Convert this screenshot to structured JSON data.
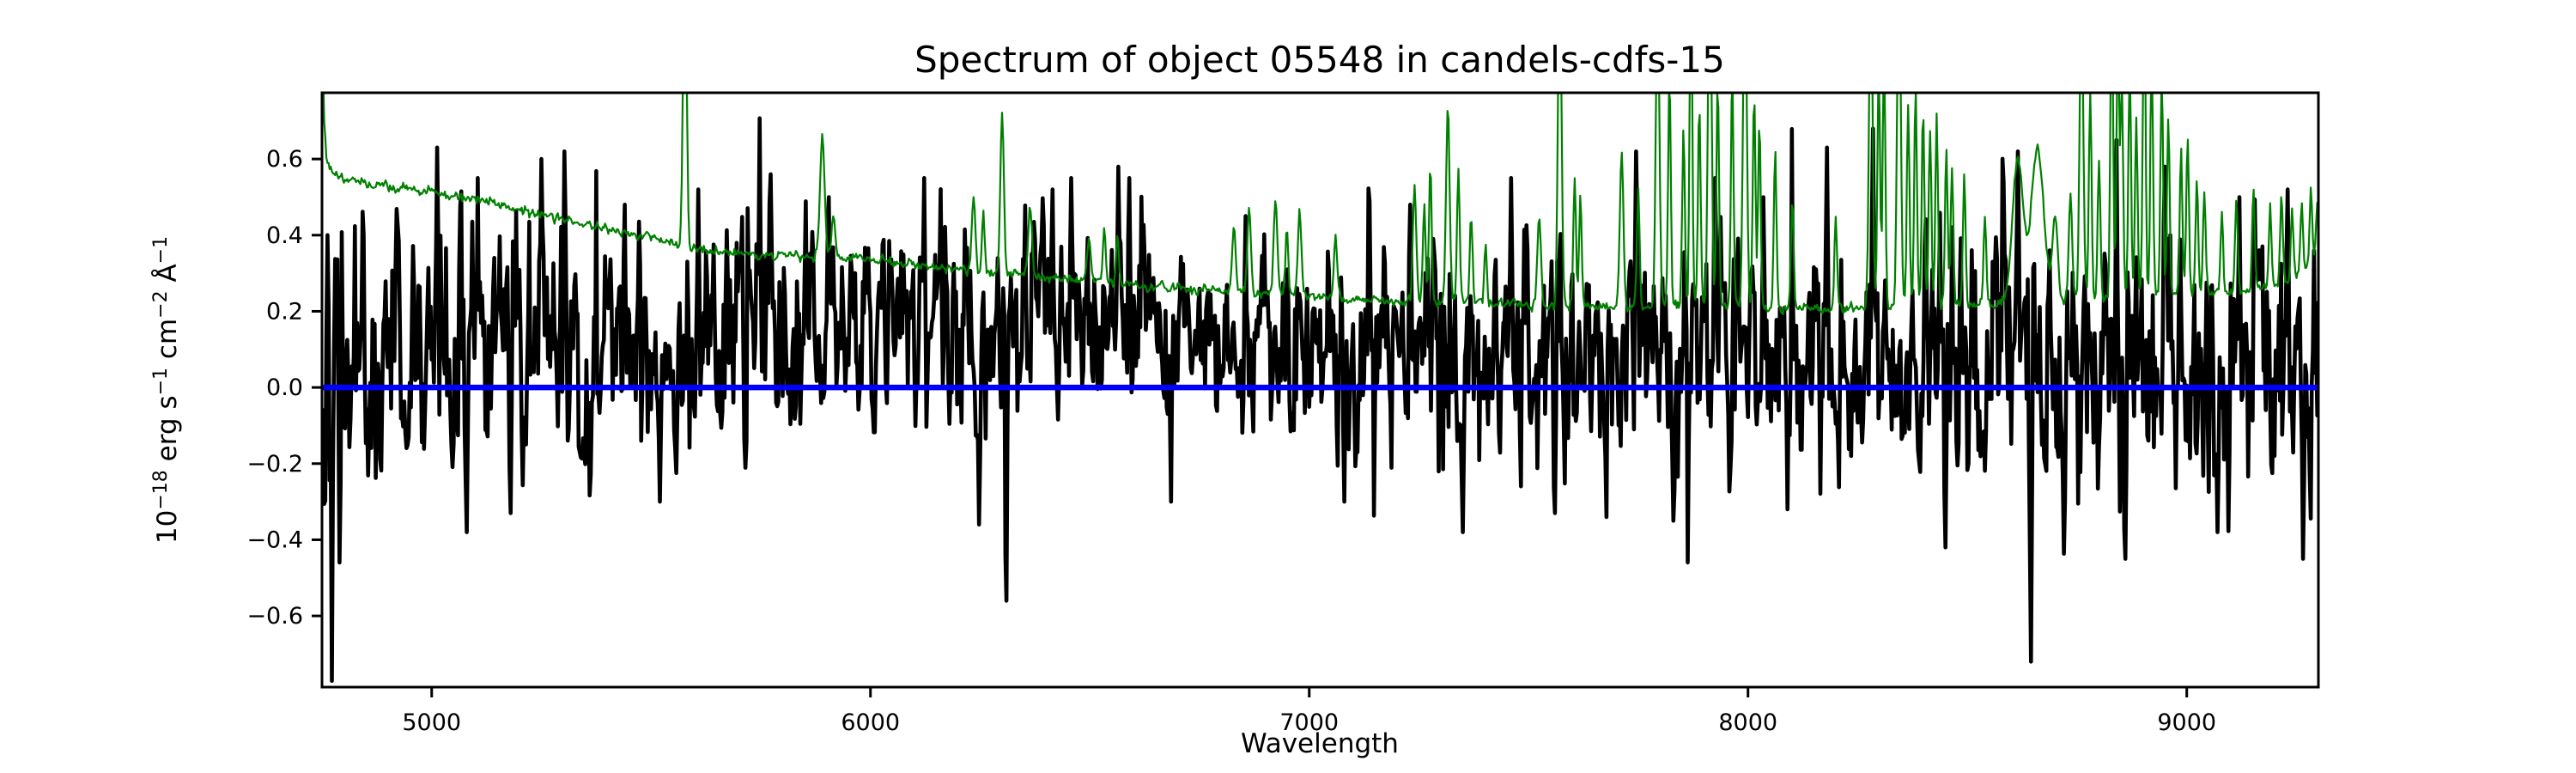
{
  "chart_data": {
    "type": "line",
    "title": "Spectrum of object 05548 in candels-cdfs-15",
    "xlabel": "Wavelength",
    "ylabel": "10−18 erg s−1 cm−2 Å−1",
    "ylabel_parts": [
      {
        "t": "10"
      },
      {
        "t": "−18",
        "sup": true
      },
      {
        "t": " erg s"
      },
      {
        "t": "−1",
        "sup": true
      },
      {
        "t": " cm"
      },
      {
        "t": "−2",
        "sup": true
      },
      {
        "t": " Å"
      },
      {
        "t": "−1",
        "sup": true
      }
    ],
    "xlim": [
      4750,
      9300
    ],
    "ylim": [
      -0.787,
      0.774
    ],
    "xticks": [
      {
        "v": 5000,
        "label": "5000"
      },
      {
        "v": 6000,
        "label": "6000"
      },
      {
        "v": 7000,
        "label": "7000"
      },
      {
        "v": 8000,
        "label": "8000"
      },
      {
        "v": 9000,
        "label": "9000"
      }
    ],
    "yticks": [
      {
        "v": 0.6,
        "label": "0.6"
      },
      {
        "v": 0.4,
        "label": "0.4"
      },
      {
        "v": 0.2,
        "label": "0.2"
      },
      {
        "v": 0.0,
        "label": "0.0"
      },
      {
        "v": -0.2,
        "label": "−0.2"
      },
      {
        "v": -0.4,
        "label": "−0.4"
      },
      {
        "v": -0.6,
        "label": "−0.6"
      }
    ],
    "grid": false,
    "legend": false,
    "sample_step_angstrom": 2.5,
    "noise_seed": 42,
    "series": [
      {
        "name": "object-flux",
        "color": "#000000",
        "linewidth": 4.6,
        "ar_coeff": 0.45,
        "mean_anchors": [
          [
            4750,
            0.06
          ],
          [
            4900,
            0.08
          ],
          [
            5100,
            0.09
          ],
          [
            5300,
            0.1
          ],
          [
            5500,
            0.12
          ],
          [
            5700,
            0.14
          ],
          [
            5900,
            0.15
          ],
          [
            6100,
            0.16
          ],
          [
            6300,
            0.15
          ],
          [
            6500,
            0.14
          ],
          [
            6700,
            0.12
          ],
          [
            6900,
            0.11
          ],
          [
            7100,
            0.09
          ],
          [
            7300,
            0.08
          ],
          [
            7500,
            0.08
          ],
          [
            7700,
            0.09
          ],
          [
            7900,
            0.08
          ],
          [
            8100,
            0.07
          ],
          [
            8300,
            0.07
          ],
          [
            8500,
            0.06
          ],
          [
            8700,
            0.06
          ],
          [
            8900,
            0.07
          ],
          [
            9100,
            0.06
          ],
          [
            9300,
            0.05
          ]
        ],
        "sigma_anchors": [
          [
            4750,
            0.17
          ],
          [
            5000,
            0.16
          ],
          [
            5200,
            0.155
          ],
          [
            5400,
            0.14
          ],
          [
            5600,
            0.13
          ],
          [
            5900,
            0.12
          ],
          [
            6200,
            0.13
          ],
          [
            6500,
            0.11
          ],
          [
            6800,
            0.09
          ],
          [
            7000,
            0.11
          ],
          [
            7200,
            0.13
          ],
          [
            7500,
            0.14
          ],
          [
            7800,
            0.14
          ],
          [
            8100,
            0.14
          ],
          [
            8400,
            0.15
          ],
          [
            8700,
            0.155
          ],
          [
            9000,
            0.15
          ],
          [
            9300,
            0.16
          ]
        ],
        "spikes": [
          [
            4763,
            0.4
          ],
          [
            4790,
            -0.46
          ],
          [
            5013,
            0.63
          ],
          [
            5080,
            -0.38
          ],
          [
            5105,
            0.55
          ],
          [
            5180,
            -0.33
          ],
          [
            5250,
            0.6
          ],
          [
            5303,
            0.62
          ],
          [
            5440,
            0.48
          ],
          [
            5520,
            -0.3
          ],
          [
            5608,
            0.52
          ],
          [
            5773,
            0.56
          ],
          [
            5905,
            0.5
          ],
          [
            6123,
            0.55
          ],
          [
            6248,
            -0.36
          ],
          [
            6310,
            -0.56
          ],
          [
            6415,
            0.52
          ],
          [
            6457,
            0.55
          ],
          [
            6565,
            0.58
          ],
          [
            6590,
            0.55
          ],
          [
            6685,
            -0.3
          ],
          [
            6855,
            0.45
          ],
          [
            7080,
            -0.3
          ],
          [
            7230,
            0.48
          ],
          [
            7350,
            -0.38
          ],
          [
            7460,
            0.55
          ],
          [
            7560,
            -0.33
          ],
          [
            7745,
            0.62
          ],
          [
            7830,
            -0.35
          ],
          [
            7925,
            0.55
          ],
          [
            8035,
            0.5
          ],
          [
            8090,
            -0.32
          ],
          [
            8180,
            0.63
          ],
          [
            8285,
            0.68
          ],
          [
            8450,
            -0.42
          ],
          [
            8615,
            0.62
          ],
          [
            8645,
            -0.72
          ],
          [
            8840,
            0.65
          ],
          [
            8860,
            -0.45
          ],
          [
            8950,
            0.58
          ],
          [
            9070,
            -0.38
          ],
          [
            9120,
            0.5
          ],
          [
            9230,
            0.52
          ],
          [
            9265,
            -0.45
          ]
        ]
      },
      {
        "name": "noise-spectrum",
        "color": "#008000",
        "linewidth": 2.2,
        "jitter_sigma": 0.006,
        "jitter_ar": 0.3,
        "base_anchors": [
          [
            4750,
            1.0
          ],
          [
            4754,
            0.72
          ],
          [
            4760,
            0.6
          ],
          [
            4772,
            0.565
          ],
          [
            4800,
            0.55
          ],
          [
            4860,
            0.535
          ],
          [
            4920,
            0.525
          ],
          [
            4975,
            0.52
          ],
          [
            5000,
            0.515
          ],
          [
            5060,
            0.5
          ],
          [
            5120,
            0.49
          ],
          [
            5180,
            0.47
          ],
          [
            5240,
            0.46
          ],
          [
            5300,
            0.44
          ],
          [
            5360,
            0.425
          ],
          [
            5420,
            0.41
          ],
          [
            5480,
            0.4
          ],
          [
            5540,
            0.385
          ],
          [
            5580,
            0.365
          ],
          [
            5640,
            0.355
          ],
          [
            5720,
            0.35
          ],
          [
            5800,
            0.345
          ],
          [
            5880,
            0.345
          ],
          [
            5960,
            0.34
          ],
          [
            6040,
            0.33
          ],
          [
            6120,
            0.32
          ],
          [
            6200,
            0.31
          ],
          [
            6300,
            0.3
          ],
          [
            6400,
            0.29
          ],
          [
            6500,
            0.28
          ],
          [
            6600,
            0.27
          ],
          [
            6700,
            0.262
          ],
          [
            6800,
            0.255
          ],
          [
            6900,
            0.248
          ],
          [
            7000,
            0.24
          ],
          [
            7100,
            0.23
          ],
          [
            7200,
            0.224
          ],
          [
            7320,
            0.228
          ],
          [
            7450,
            0.22
          ],
          [
            7600,
            0.215
          ],
          [
            7750,
            0.21
          ],
          [
            7900,
            0.215
          ],
          [
            8050,
            0.21
          ],
          [
            8200,
            0.205
          ],
          [
            8330,
            0.212
          ],
          [
            8450,
            0.215
          ],
          [
            8560,
            0.22
          ],
          [
            8640,
            0.235
          ],
          [
            8750,
            0.232
          ],
          [
            8900,
            0.238
          ],
          [
            9000,
            0.245
          ],
          [
            9100,
            0.252
          ],
          [
            9180,
            0.262
          ],
          [
            9240,
            0.285
          ],
          [
            9285,
            0.32
          ],
          [
            9300,
            0.36
          ]
        ],
        "sky_lines": [
          [
            5199,
            0.47,
            3
          ],
          [
            5577,
            1.2,
            4
          ],
          [
            5890,
            0.66,
            5
          ],
          [
            5915,
            0.45,
            4
          ],
          [
            6235,
            0.5,
            4
          ],
          [
            6257,
            0.45,
            3
          ],
          [
            6300,
            0.72,
            4
          ],
          [
            6364,
            0.48,
            4
          ],
          [
            6498,
            0.4,
            4
          ],
          [
            6533,
            0.42,
            3
          ],
          [
            6563,
            0.4,
            3
          ],
          [
            6828,
            0.42,
            4
          ],
          [
            6863,
            0.48,
            4
          ],
          [
            6923,
            0.5,
            4
          ],
          [
            6949,
            0.42,
            3
          ],
          [
            6978,
            0.46,
            4
          ],
          [
            7060,
            0.4,
            4
          ],
          [
            7240,
            0.52,
            4
          ],
          [
            7262,
            0.48,
            3
          ],
          [
            7276,
            0.58,
            3
          ],
          [
            7316,
            0.74,
            4
          ],
          [
            7340,
            0.57,
            3
          ],
          [
            7369,
            0.46,
            3
          ],
          [
            7402,
            0.38,
            3
          ],
          [
            7524,
            0.45,
            4
          ],
          [
            7571,
            1.1,
            4
          ],
          [
            7605,
            0.55,
            3
          ],
          [
            7618,
            0.5,
            3
          ],
          [
            7712,
            0.62,
            4
          ],
          [
            7750,
            0.52,
            3
          ],
          [
            7794,
            1.05,
            4
          ],
          [
            7821,
            0.82,
            3
          ],
          [
            7853,
            0.68,
            3
          ],
          [
            7870,
            1.1,
            3
          ],
          [
            7889,
            0.75,
            3
          ],
          [
            7913,
            1.15,
            4
          ],
          [
            7931,
            0.8,
            3
          ],
          [
            7964,
            0.82,
            3
          ],
          [
            7993,
            1.15,
            4
          ],
          [
            8014,
            0.78,
            3
          ],
          [
            8026,
            0.7,
            3
          ],
          [
            8062,
            0.62,
            3
          ],
          [
            8101,
            0.5,
            3
          ],
          [
            8200,
            0.45,
            3
          ],
          [
            8280,
            1.1,
            4
          ],
          [
            8298,
            0.85,
            3
          ],
          [
            8310,
            0.88,
            3
          ],
          [
            8344,
            1.15,
            4
          ],
          [
            8365,
            0.75,
            3
          ],
          [
            8382,
            0.8,
            3
          ],
          [
            8399,
            0.72,
            3
          ],
          [
            8415,
            0.68,
            3
          ],
          [
            8430,
            0.72,
            3
          ],
          [
            8452,
            0.62,
            3
          ],
          [
            8465,
            0.58,
            3
          ],
          [
            8493,
            0.55,
            3
          ],
          [
            8540,
            0.45,
            3
          ],
          [
            8615,
            0.6,
            12
          ],
          [
            8660,
            0.63,
            14
          ],
          [
            8700,
            0.45,
            6
          ],
          [
            8735,
            0.5,
            4
          ],
          [
            8760,
            1.05,
            4
          ],
          [
            8780,
            0.78,
            3
          ],
          [
            8800,
            0.6,
            3
          ],
          [
            8829,
            1.1,
            3
          ],
          [
            8843,
            0.95,
            3
          ],
          [
            8852,
            0.8,
            3
          ],
          [
            8870,
            0.85,
            3
          ],
          [
            8885,
            0.72,
            3
          ],
          [
            8903,
            1.1,
            3
          ],
          [
            8920,
            0.88,
            3
          ],
          [
            8943,
            0.82,
            3
          ],
          [
            8958,
            0.72,
            3
          ],
          [
            8987,
            0.62,
            3
          ],
          [
            9002,
            0.66,
            3
          ],
          [
            9023,
            0.55,
            3
          ],
          [
            9040,
            0.52,
            3
          ],
          [
            9080,
            0.45,
            3
          ],
          [
            9113,
            0.5,
            3
          ],
          [
            9152,
            0.52,
            3
          ],
          [
            9190,
            0.48,
            3
          ],
          [
            9216,
            0.5,
            3
          ],
          [
            9240,
            0.46,
            3
          ],
          [
            9262,
            0.48,
            3
          ],
          [
            9283,
            0.52,
            3
          ],
          [
            9298,
            0.5,
            3
          ]
        ]
      },
      {
        "name": "zero-line",
        "color": "#0000ff",
        "linewidth": 6.5,
        "y": 0.0
      }
    ],
    "colors": {
      "flux": "#000000",
      "noise": "#008000",
      "zero": "#0000ff",
      "axes": "#000000",
      "background": "#ffffff"
    }
  }
}
